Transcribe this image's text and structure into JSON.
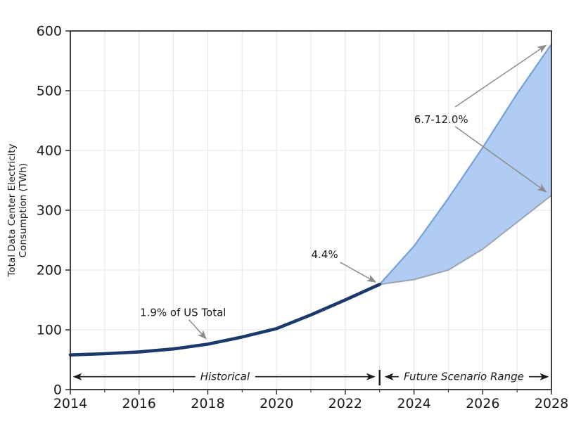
{
  "figure": {
    "background": "#ffffff",
    "spine_color": "#2b2b2b",
    "grid_color": "#e7e7e7",
    "arrow_gray": "#8c8c8c",
    "arrow_black": "#1a1a1a"
  },
  "chart_data": {
    "type": "line",
    "title": "",
    "xlabel": "",
    "ylabel_lines": [
      "Total Data Center Electricity",
      "Consumption (TWh)"
    ],
    "xlim": [
      2014,
      2028
    ],
    "ylim": [
      0,
      600
    ],
    "x_major_ticks": [
      2014,
      2016,
      2018,
      2020,
      2022,
      2024,
      2026,
      2028
    ],
    "x_minor_ticks": [
      2015,
      2017,
      2019,
      2021,
      2023,
      2025,
      2027
    ],
    "y_ticks": [
      0,
      100,
      200,
      300,
      400,
      500,
      600
    ],
    "grid": {
      "vertical_years": [
        2015,
        2016,
        2017,
        2018,
        2019,
        2020,
        2021,
        2022,
        2023,
        2024,
        2025,
        2026,
        2027
      ],
      "horizontal_values": [
        100,
        200,
        300,
        400,
        500
      ]
    },
    "series": [
      {
        "name": "Historical",
        "x": [
          2014,
          2015,
          2016,
          2017,
          2018,
          2019,
          2020,
          2021,
          2022,
          2023
        ],
        "y": [
          58,
          60,
          63,
          68,
          76,
          88,
          102,
          125,
          150,
          176
        ],
        "color": "#1b3a6b",
        "line_width": 4.6
      }
    ],
    "band": {
      "name": "Future Scenario Range",
      "x": [
        2023,
        2024,
        2025,
        2026,
        2027,
        2028
      ],
      "low": [
        176,
        184,
        200,
        235,
        280,
        325
      ],
      "high": [
        176,
        240,
        320,
        405,
        495,
        578
      ],
      "fill": "#a9c7f1",
      "fill_opacity": 0.9,
      "edge_top_color": "#769fdc",
      "edge_bottom_color": "#9aa3af"
    },
    "annotations": [
      {
        "id": "share-2018",
        "text": "1.9% of US Total",
        "label_at": [
          2017.28,
          129
        ],
        "arrows": [
          {
            "from": [
              2017.45,
              117
            ],
            "to": [
              2017.95,
              85
            ]
          }
        ]
      },
      {
        "id": "share-2023",
        "text": "4.4%",
        "label_at": [
          2021.4,
          226
        ],
        "arrows": [
          {
            "from": [
              2021.85,
              213
            ],
            "to": [
              2022.88,
              180
            ]
          }
        ]
      },
      {
        "id": "share-2028",
        "text": "6.7-12.0%",
        "label_at": [
          2024.79,
          452
        ],
        "arrows": [
          {
            "from": [
              2025.2,
              473
            ],
            "to": [
              2027.84,
              576
            ]
          },
          {
            "from": [
              2025.2,
              440
            ],
            "to": [
              2027.84,
              331
            ]
          }
        ]
      }
    ],
    "range_arrows": [
      {
        "id": "historical",
        "label": "Historical",
        "label_at": [
          2018.5,
          21.5
        ],
        "tip_left": 2014.1,
        "tip_right": 2022.85
      },
      {
        "id": "future",
        "label": "Future Scenario Range",
        "label_at": [
          2025.45,
          21.5
        ],
        "tip_left": 2023.17,
        "tip_right": 2027.9
      }
    ],
    "divider": {
      "x": 2023,
      "y_range": [
        7,
        33
      ]
    }
  }
}
